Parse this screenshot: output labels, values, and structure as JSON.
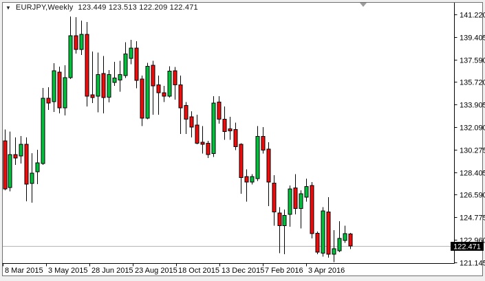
{
  "window": {
    "background": "#f0f0f0",
    "frame_border": "#6e6e6e",
    "plot_background": "#ffffff",
    "plot_border": "#000000"
  },
  "header": {
    "collapse_icon": "▼",
    "symbol_period": "EURJPY,Weekly",
    "ohlc_text": "123.449 123.513 122.209 122.471"
  },
  "chart_data": {
    "type": "candlestick",
    "title": "EURJPY,Weekly",
    "symbol": "EURJPY",
    "timeframe": "Weekly",
    "last_candle": {
      "open": "123.449",
      "high": "123.513",
      "low": "122.209",
      "close": "122.471"
    },
    "current_price": "122.471",
    "legend_position": "none",
    "grid": false,
    "colors": {
      "up": "#00c13b",
      "down": "#f20b0b",
      "outline": "#000000",
      "wick": "#000000",
      "bid_line": "#b4b4b4",
      "badge_bg": "#000000",
      "badge_text": "#ffffff",
      "shift_marker": "#9c9c9c"
    },
    "y_axis": {
      "max": 141.22,
      "min": 121.145,
      "labels": [
        "141.220",
        "139.405",
        "137.590",
        "135.720",
        "133.905",
        "132.090",
        "130.275",
        "128.405",
        "126.590",
        "124.775",
        "122.960",
        "121.145"
      ]
    },
    "x_axis": {
      "labels": [
        "8 Mar 2015",
        "3 May 2015",
        "28 Jun 2015",
        "23 Aug 2015",
        "18 Oct 2015",
        "13 Dec 2015",
        "7 Feb 2016",
        "3 Apr 2016"
      ]
    },
    "candles": [
      [
        130.98,
        131.9,
        126.99,
        127.08
      ],
      [
        127.19,
        131.72,
        126.9,
        129.87
      ],
      [
        129.87,
        131.26,
        129.03,
        129.59
      ],
      [
        129.76,
        131.37,
        129.14,
        130.7
      ],
      [
        130.7,
        131.26,
        126.08,
        127.47
      ],
      [
        127.53,
        129.98,
        125.97,
        128.36
      ],
      [
        128.47,
        130.26,
        127.47,
        129.2
      ],
      [
        129.14,
        135.26,
        129.03,
        134.43
      ],
      [
        134.43,
        135.32,
        133.48,
        134.04
      ],
      [
        134.15,
        137.27,
        133.31,
        136.66
      ],
      [
        136.55,
        137.0,
        133.2,
        133.65
      ],
      [
        133.65,
        137.11,
        133.04,
        136.1
      ],
      [
        136.1,
        141.05,
        135.99,
        139.49
      ],
      [
        139.49,
        141.0,
        138.05,
        138.38
      ],
      [
        138.38,
        140.72,
        137.94,
        139.6
      ],
      [
        139.6,
        140.61,
        133.76,
        134.6
      ],
      [
        134.72,
        138.21,
        134.04,
        134.5
      ],
      [
        134.59,
        138.12,
        133.3,
        136.36
      ],
      [
        136.44,
        137.85,
        133.2,
        134.49
      ],
      [
        134.5,
        136.7,
        134.1,
        136.36
      ],
      [
        135.71,
        137.38,
        135.43,
        136.08
      ],
      [
        135.89,
        137.47,
        134.97,
        136.36
      ],
      [
        136.27,
        138.96,
        136.08,
        138.03
      ],
      [
        137.66,
        139.15,
        137.19,
        138.49
      ],
      [
        138.49,
        139.05,
        135.24,
        135.89
      ],
      [
        135.99,
        136.27,
        132.19,
        132.83
      ],
      [
        132.83,
        137.29,
        132.74,
        137.01
      ],
      [
        137.1,
        137.47,
        133.11,
        135.43
      ],
      [
        135.52,
        136.27,
        133.11,
        134.87
      ],
      [
        134.87,
        135.43,
        134.13,
        134.59
      ],
      [
        134.59,
        137.01,
        134.5,
        136.63
      ],
      [
        136.67,
        136.97,
        134.31,
        135.52
      ],
      [
        135.52,
        136.27,
        131.53,
        133.66
      ],
      [
        133.85,
        134.13,
        131.53,
        132.74
      ],
      [
        132.92,
        133.38,
        131.25,
        132.09
      ],
      [
        132.27,
        133.11,
        130.7,
        130.79
      ],
      [
        130.88,
        132.19,
        129.96,
        130.7
      ],
      [
        130.79,
        130.97,
        129.58,
        129.86
      ],
      [
        129.96,
        134.59,
        129.68,
        134.03
      ],
      [
        134.13,
        134.59,
        132.37,
        132.74
      ],
      [
        132.74,
        133.76,
        131.07,
        131.72
      ],
      [
        131.95,
        132.92,
        131.07,
        131.8
      ],
      [
        131.9,
        132.46,
        130.23,
        130.51
      ],
      [
        130.7,
        130.79,
        126.71,
        128.01
      ],
      [
        128.1,
        128.66,
        126.06,
        127.64
      ],
      [
        127.64,
        128.29,
        127.46,
        128.1
      ],
      [
        127.92,
        132.19,
        127.73,
        131.35
      ],
      [
        131.35,
        132.09,
        129.96,
        130.23
      ],
      [
        130.32,
        130.88,
        125.69,
        127.64
      ],
      [
        127.55,
        128.19,
        124.11,
        125.23
      ],
      [
        125.13,
        125.6,
        121.89,
        124.11
      ],
      [
        124.11,
        125.41,
        121.8,
        124.95
      ],
      [
        125.04,
        127.36,
        124.02,
        127.08
      ],
      [
        127.17,
        128.29,
        125.04,
        125.5
      ],
      [
        125.5,
        126.99,
        123.9,
        126.71
      ],
      [
        126.43,
        127.91,
        126.06,
        127.27
      ],
      [
        127.36,
        127.64,
        123.09,
        123.46
      ],
      [
        123.5,
        123.65,
        121.8,
        121.98
      ],
      [
        121.89,
        125.6,
        121.61,
        125.32
      ],
      [
        125.23,
        126.43,
        121.52,
        121.8
      ],
      [
        121.8,
        123.74,
        121.15,
        122.26
      ],
      [
        122.07,
        124.48,
        121.98,
        123.09
      ],
      [
        122.91,
        124.11,
        122.72,
        123.46
      ],
      [
        123.449,
        123.513,
        122.209,
        122.471
      ]
    ]
  }
}
